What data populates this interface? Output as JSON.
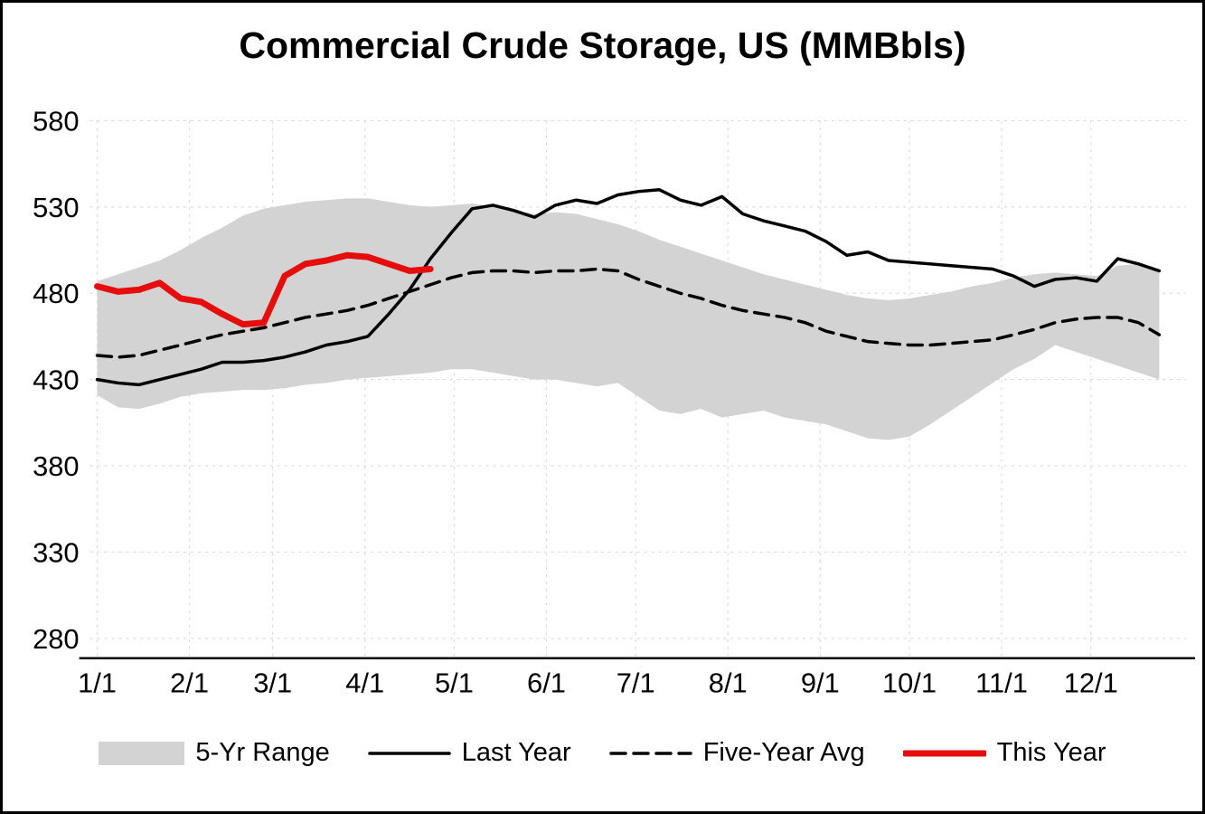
{
  "chart_data": {
    "type": "line",
    "title": "Commercial Crude Storage, US (MMBbls)",
    "xlabel": "",
    "ylabel": "",
    "ylim": [
      280,
      580
    ],
    "y_ticks": [
      280,
      330,
      380,
      430,
      480,
      530,
      580
    ],
    "x_tick_labels": [
      "1/1",
      "2/1",
      "3/1",
      "4/1",
      "5/1",
      "6/1",
      "7/1",
      "8/1",
      "9/1",
      "10/1",
      "11/1",
      "12/1"
    ],
    "x_tick_days": [
      0,
      31,
      59,
      90,
      120,
      151,
      181,
      212,
      243,
      273,
      304,
      334
    ],
    "x_total_days": 366,
    "week_interval_days": 7,
    "grid": "on",
    "legend_position": "bottom",
    "colors": {
      "grid": "#dcdcdc",
      "axis": "#000000"
    },
    "series": [
      {
        "name": "5-Yr Range",
        "type": "band",
        "color": "#d3d3d3",
        "upper": [
          487,
          491,
          495,
          499,
          505,
          512,
          518,
          525,
          529,
          531,
          533,
          534,
          535,
          535,
          533,
          531,
          530,
          531,
          532,
          530,
          528,
          526,
          527,
          526,
          523,
          520,
          516,
          511,
          507,
          503,
          499,
          495,
          491,
          488,
          485,
          482,
          479,
          477,
          476,
          477,
          479,
          481,
          484,
          486,
          489,
          491,
          492,
          491,
          490,
          496,
          497,
          493
        ],
        "lower": [
          421,
          414,
          413,
          416,
          420,
          422,
          423,
          424,
          424,
          425,
          427,
          428,
          430,
          431,
          432,
          433,
          434,
          436,
          436,
          434,
          432,
          430,
          430,
          428,
          426,
          428,
          420,
          412,
          410,
          413,
          408,
          410,
          412,
          408,
          406,
          404,
          400,
          396,
          395,
          397,
          404,
          412,
          420,
          428,
          436,
          442,
          450,
          446,
          442,
          438,
          434,
          430
        ]
      },
      {
        "name": "Last Year",
        "type": "line",
        "style": "solid",
        "color": "#000000",
        "width": 3.5,
        "values": [
          430,
          428,
          427,
          430,
          433,
          436,
          440,
          440,
          441,
          443,
          446,
          450,
          452,
          455,
          468,
          482,
          500,
          515,
          529,
          531,
          528,
          524,
          531,
          534,
          532,
          537,
          539,
          540,
          534,
          531,
          536,
          526,
          522,
          519,
          516,
          510,
          502,
          504,
          499,
          498,
          497,
          496,
          495,
          494,
          490,
          484,
          488,
          489,
          487,
          500,
          497,
          493
        ]
      },
      {
        "name": "Five-Year Avg",
        "type": "line",
        "style": "dashed",
        "color": "#000000",
        "width": 3.5,
        "values": [
          444,
          443,
          444,
          447,
          450,
          453,
          456,
          458,
          460,
          463,
          466,
          468,
          470,
          473,
          477,
          481,
          485,
          489,
          492,
          493,
          493,
          492,
          493,
          493,
          494,
          493,
          488,
          484,
          480,
          477,
          473,
          470,
          468,
          466,
          463,
          458,
          455,
          452,
          451,
          450,
          450,
          451,
          452,
          453,
          456,
          459,
          463,
          465,
          466,
          466,
          463,
          456
        ]
      },
      {
        "name": "This Year",
        "type": "line",
        "style": "solid",
        "color": "#e60d0d",
        "width": 7,
        "values": [
          484,
          481,
          482,
          486,
          477,
          475,
          468,
          462,
          463,
          490,
          497,
          499,
          502,
          501,
          497,
          493,
          494
        ]
      }
    ]
  }
}
